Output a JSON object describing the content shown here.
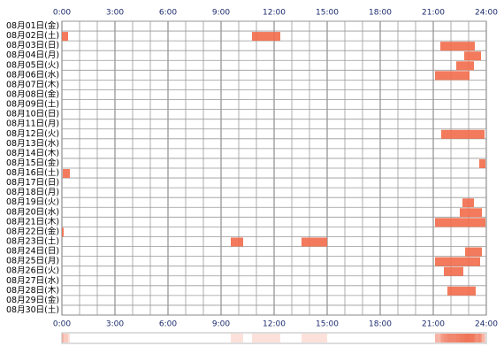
{
  "chart_data": {
    "type": "timeline",
    "categories": [
      "08月01日(金)",
      "08月02日(土)",
      "08月03日(日)",
      "08月04日(月)",
      "08月05日(火)",
      "08月06日(水)",
      "08月07日(木)",
      "08月08日(金)",
      "08月09日(土)",
      "08月10日(日)",
      "08月11日(月)",
      "08月12日(火)",
      "08月13日(水)",
      "08月14日(木)",
      "08月15日(金)",
      "08月16日(土)",
      "08月17日(日)",
      "08月18日(月)",
      "08月19日(火)",
      "08月20日(水)",
      "08月21日(木)",
      "08月22日(金)",
      "08月23日(土)",
      "08月24日(日)",
      "08月25日(月)",
      "08月26日(火)",
      "08月27日(水)",
      "08月28日(木)",
      "08月29日(金)",
      "08月30日(土)"
    ],
    "values": [
      [],
      [
        [
          0,
          0.35
        ],
        [
          10.75,
          12.35
        ]
      ],
      [
        [
          21.4,
          23.35
        ]
      ],
      [
        [
          22.75,
          23.7
        ]
      ],
      [
        [
          22.3,
          23.3
        ]
      ],
      [
        [
          21.1,
          23.05
        ]
      ],
      [],
      [],
      [],
      [],
      [],
      [
        [
          21.45,
          23.9
        ]
      ],
      [],
      [],
      [
        [
          23.6,
          23.95
        ]
      ],
      [
        [
          0.05,
          0.45
        ]
      ],
      [],
      [],
      [
        [
          22.65,
          23.3
        ]
      ],
      [
        [
          22.5,
          23.75
        ]
      ],
      [
        [
          21.1,
          23.95
        ]
      ],
      [
        [
          0,
          0.1
        ]
      ],
      [
        [
          9.55,
          10.25
        ],
        [
          13.55,
          15.0
        ]
      ],
      [
        [
          22.8,
          23.75
        ]
      ],
      [
        [
          21.1,
          23.65
        ]
      ],
      [
        [
          21.6,
          22.7
        ]
      ],
      [],
      [
        [
          21.8,
          23.4
        ]
      ],
      [],
      []
    ],
    "color": "#f26b4a",
    "xlim": [
      0,
      24
    ],
    "xticks": [
      {
        "value": 0,
        "label": "0:00"
      },
      {
        "value": 3,
        "label": "3:00"
      },
      {
        "value": 6,
        "label": "6:00"
      },
      {
        "value": 9,
        "label": "9:00"
      },
      {
        "value": 12,
        "label": "12:00"
      },
      {
        "value": 15,
        "label": "15:00"
      },
      {
        "value": 18,
        "label": "18:00"
      },
      {
        "value": 21,
        "label": "21:00"
      },
      {
        "value": 24,
        "label": "24:00"
      }
    ],
    "grid": true
  }
}
